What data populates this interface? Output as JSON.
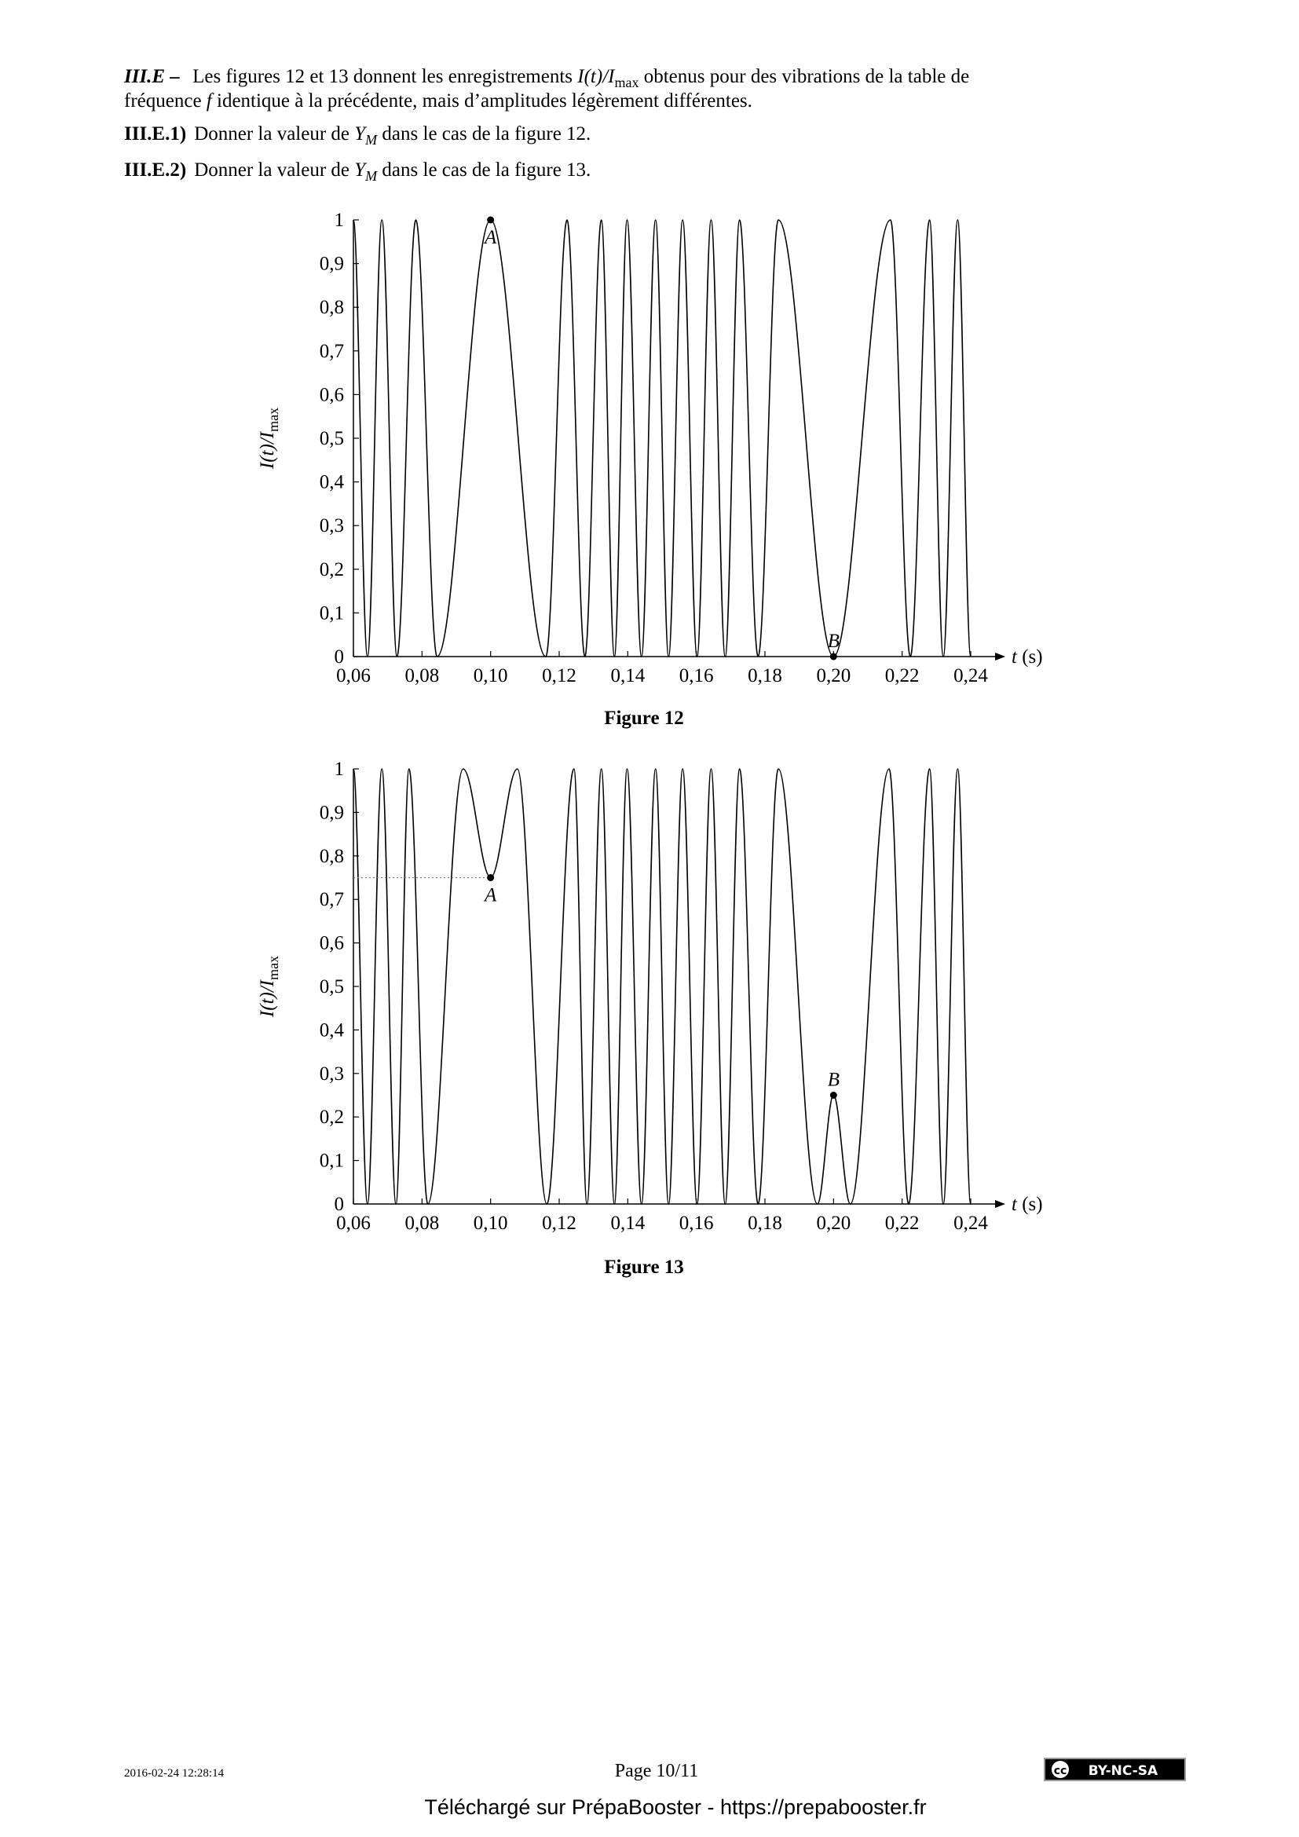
{
  "intro": {
    "label": "III.E –",
    "text_a": "Les figures 12 et 13 donnent les enregistrements ",
    "math": "I(t)/I",
    "math_sub": "max",
    "text_b": " obtenus pour des vibrations de la table de",
    "text_c": "fréquence ",
    "f": "f",
    "text_d": " identique à la précédente, mais d’amplitudes légèrement différentes."
  },
  "questions": [
    {
      "label": "III.E.1)",
      "text_a": "Donner la valeur de ",
      "math": "Y",
      "math_sub": "M",
      "text_b": " dans le cas de la figure 12."
    },
    {
      "label": "III.E.2)",
      "text_a": "Donner la valeur de ",
      "math": "Y",
      "math_sub": "M",
      "text_b": " dans le cas de la figure 13."
    }
  ],
  "chart_data": [
    {
      "type": "line",
      "caption": "Figure 12",
      "xlabel": "t (s)",
      "ylabel": "I(t)/I",
      "ylabel_sub": "max",
      "xlim": [
        0.06,
        0.24
      ],
      "ylim": [
        0,
        1
      ],
      "xticks": [
        {
          "value": 0.06,
          "label": "0,06"
        },
        {
          "value": 0.08,
          "label": "0,08"
        },
        {
          "value": 0.1,
          "label": "0,10"
        },
        {
          "value": 0.12,
          "label": "0,12"
        },
        {
          "value": 0.14,
          "label": "0,14"
        },
        {
          "value": 0.16,
          "label": "0,16"
        },
        {
          "value": 0.18,
          "label": "0,18"
        },
        {
          "value": 0.2,
          "label": "0,20"
        },
        {
          "value": 0.22,
          "label": "0,22"
        },
        {
          "value": 0.24,
          "label": "0,24"
        }
      ],
      "yticks": [
        0,
        {
          "value": 0.1,
          "label": "0,1"
        },
        {
          "value": 0.2,
          "label": "0,2"
        },
        {
          "value": 0.3,
          "label": "0,3"
        },
        {
          "value": 0.4,
          "label": "0,4"
        },
        {
          "value": 0.5,
          "label": "0,5"
        },
        {
          "value": 0.6,
          "label": "0,6"
        },
        {
          "value": 0.7,
          "label": "0,7"
        },
        {
          "value": 0.8,
          "label": "0,8"
        },
        {
          "value": 0.9,
          "label": "0,9"
        },
        1
      ],
      "series": [
        {
          "color": "#000000",
          "x": [
            0.06,
            0.0641,
            0.0683,
            0.0727,
            0.0782,
            0.0844,
            0.1,
            0.1161,
            0.1223,
            0.1275,
            0.1323,
            0.1361,
            0.1398,
            0.144,
            0.1481,
            0.1519,
            0.156,
            0.1602,
            0.1643,
            0.1684,
            0.1726,
            0.178,
            0.1839,
            0.2,
            0.2166,
            0.2224,
            0.228,
            0.232,
            0.2362,
            0.24
          ],
          "values": [
            1,
            0,
            1,
            0,
            1,
            0,
            1,
            0,
            1,
            0,
            1,
            0,
            1,
            0,
            1,
            0,
            1,
            0,
            1,
            0,
            1,
            0,
            1,
            0,
            1,
            0,
            1,
            0,
            1,
            0
          ]
        }
      ],
      "annotations": [
        {
          "label": "A",
          "x": 0.1,
          "y": 1
        },
        {
          "label": "B",
          "x": 0.2,
          "y": 0
        }
      ]
    },
    {
      "type": "line",
      "caption": "Figure 13",
      "xlabel": "t (s)",
      "ylabel": "I(t)/I",
      "ylabel_sub": "max",
      "xlim": [
        0.06,
        0.24
      ],
      "ylim": [
        0,
        1
      ],
      "xticks": [
        {
          "value": 0.06,
          "label": "0,06"
        },
        {
          "value": 0.08,
          "label": "0,08"
        },
        {
          "value": 0.1,
          "label": "0,10"
        },
        {
          "value": 0.12,
          "label": "0,12"
        },
        {
          "value": 0.14,
          "label": "0,14"
        },
        {
          "value": 0.16,
          "label": "0,16"
        },
        {
          "value": 0.18,
          "label": "0,18"
        },
        {
          "value": 0.2,
          "label": "0,20"
        },
        {
          "value": 0.22,
          "label": "0,22"
        },
        {
          "value": 0.24,
          "label": "0,24"
        }
      ],
      "yticks": [
        0,
        {
          "value": 0.1,
          "label": "0,1"
        },
        {
          "value": 0.2,
          "label": "0,2"
        },
        {
          "value": 0.3,
          "label": "0,3"
        },
        {
          "value": 0.4,
          "label": "0,4"
        },
        {
          "value": 0.5,
          "label": "0,5"
        },
        {
          "value": 0.6,
          "label": "0,6"
        },
        {
          "value": 0.7,
          "label": "0,7"
        },
        {
          "value": 0.8,
          "label": "0,8"
        },
        {
          "value": 0.9,
          "label": "0,9"
        },
        1
      ],
      "series": [
        {
          "color": "#000000",
          "x": [
            0.06,
            0.0641,
            0.0683,
            0.0724,
            0.0762,
            0.0817,
            0.092,
            0.1,
            0.1078,
            0.1164,
            0.1243,
            0.1281,
            0.1323,
            0.1361,
            0.1398,
            0.144,
            0.1481,
            0.1519,
            0.156,
            0.1602,
            0.1643,
            0.1684,
            0.1726,
            0.178,
            0.1839,
            0.1953,
            0.2,
            0.2049,
            0.2162,
            0.2219,
            0.228,
            0.232,
            0.2362,
            0.24
          ],
          "values": [
            1,
            0,
            1,
            0,
            1,
            0,
            1,
            0.75,
            1,
            0,
            1,
            0,
            1,
            0,
            1,
            0,
            1,
            0,
            1,
            0,
            1,
            0,
            1,
            0,
            1,
            0,
            0.25,
            0,
            1,
            0,
            1,
            0,
            1,
            0
          ]
        }
      ],
      "annotations": [
        {
          "label": "A",
          "x": 0.1,
          "y": 0.75,
          "dotted_guide": true
        },
        {
          "label": "B",
          "x": 0.2,
          "y": 0.25
        }
      ]
    }
  ],
  "footer": {
    "date": "2016-02-24 12:28:14",
    "page": "Page 10/11",
    "license": "BY-NC-SA",
    "download": "Téléchargé sur PrépaBooster - https://prepabooster.fr"
  }
}
